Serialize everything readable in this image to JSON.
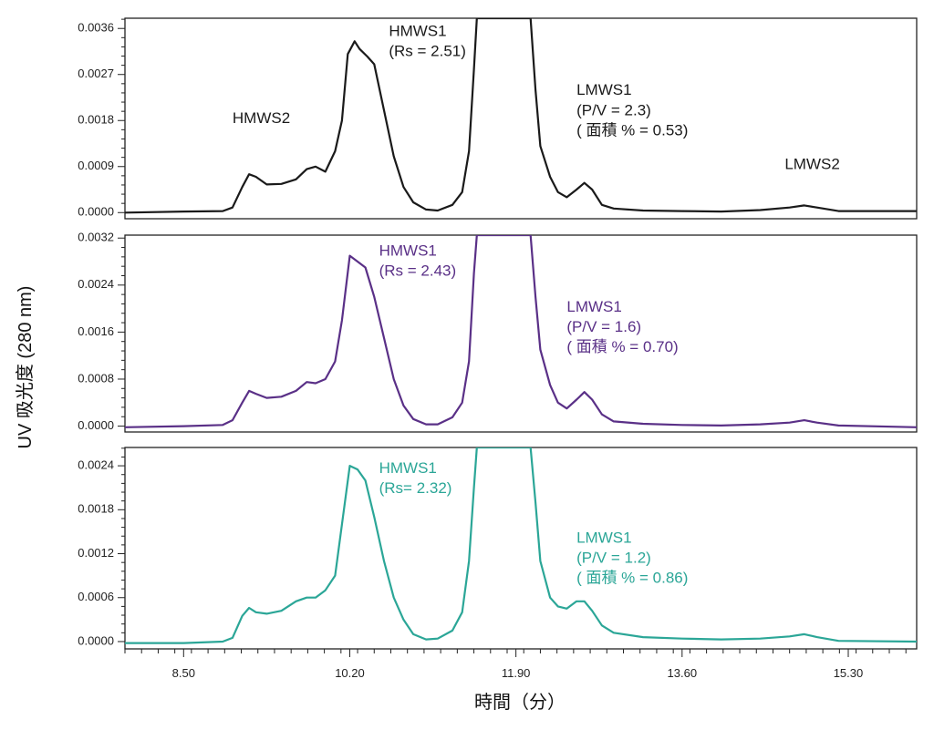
{
  "chart_data": {
    "type": "line",
    "layout": "three vertically stacked panels sharing the x axis",
    "xlabel": "時間（分）",
    "ylabel": "UV 吸光度 (280 nm)",
    "xlim": [
      7.9,
      16.0
    ],
    "xticks": [
      "8.50",
      "10.20",
      "11.90",
      "13.60",
      "15.30"
    ],
    "grid": false,
    "panels": [
      {
        "color": "#1a1a1a",
        "ylim": [
          -0.00012,
          0.0038
        ],
        "yticks": [
          "0.0000",
          "0.0009",
          "0.0018",
          "0.0027",
          "0.0036"
        ],
        "baseline": 0.0,
        "trace": [
          [
            7.9,
            0.0
          ],
          [
            8.5,
            2e-05
          ],
          [
            8.9,
            3e-05
          ],
          [
            9.0,
            0.0001
          ],
          [
            9.1,
            0.0005
          ],
          [
            9.17,
            0.00075
          ],
          [
            9.24,
            0.0007
          ],
          [
            9.35,
            0.00055
          ],
          [
            9.5,
            0.00056
          ],
          [
            9.65,
            0.00065
          ],
          [
            9.76,
            0.00085
          ],
          [
            9.85,
            0.0009
          ],
          [
            9.95,
            0.0008
          ],
          [
            10.05,
            0.0012
          ],
          [
            10.12,
            0.0018
          ],
          [
            10.18,
            0.0031
          ],
          [
            10.25,
            0.00335
          ],
          [
            10.3,
            0.0032
          ],
          [
            10.38,
            0.00305
          ],
          [
            10.45,
            0.0029
          ],
          [
            10.55,
            0.002
          ],
          [
            10.65,
            0.0011
          ],
          [
            10.75,
            0.0005
          ],
          [
            10.85,
            0.0002
          ],
          [
            10.98,
            6e-05
          ],
          [
            11.1,
            4e-05
          ],
          [
            11.25,
            0.00015
          ],
          [
            11.35,
            0.0004
          ],
          [
            11.42,
            0.0012
          ],
          [
            11.47,
            0.0028
          ],
          [
            11.5,
            0.0038
          ],
          [
            12.05,
            0.0038
          ],
          [
            12.1,
            0.0024
          ],
          [
            12.15,
            0.0013
          ],
          [
            12.25,
            0.0007
          ],
          [
            12.33,
            0.0004
          ],
          [
            12.42,
            0.0003
          ],
          [
            12.52,
            0.00045
          ],
          [
            12.6,
            0.00058
          ],
          [
            12.68,
            0.00045
          ],
          [
            12.78,
            0.00015
          ],
          [
            12.9,
            8e-05
          ],
          [
            13.2,
            4e-05
          ],
          [
            13.6,
            3e-05
          ],
          [
            14.0,
            2e-05
          ],
          [
            14.4,
            5e-05
          ],
          [
            14.7,
            0.0001
          ],
          [
            14.85,
            0.00014
          ],
          [
            14.98,
            0.0001
          ],
          [
            15.2,
            3e-05
          ],
          [
            16.0,
            3e-05
          ]
        ],
        "annotations": [
          {
            "lines": [
              "HMWS2"
            ],
            "x": 9.0,
            "y": 0.00175
          },
          {
            "lines": [
              "HMWS1",
              "(Rs = 2.51)"
            ],
            "x": 10.6,
            "y": 0.00345
          },
          {
            "lines": [
              "LMWS1",
              "(P/V = 2.3)",
              "( 面積 % = 0.53)"
            ],
            "x": 12.52,
            "y": 0.0023
          },
          {
            "lines": [
              "LMWS2"
            ],
            "x": 14.65,
            "y": 0.00085
          }
        ]
      },
      {
        "color": "#5a3087",
        "ylim": [
          -0.0001,
          0.00325
        ],
        "yticks": [
          "0.0000",
          "0.0008",
          "0.0016",
          "0.0024",
          "0.0032"
        ],
        "baseline": 0.0,
        "trace": [
          [
            7.9,
            -2e-05
          ],
          [
            8.5,
            0.0
          ],
          [
            8.9,
            2e-05
          ],
          [
            9.0,
            0.0001
          ],
          [
            9.1,
            0.0004
          ],
          [
            9.17,
            0.0006
          ],
          [
            9.24,
            0.00055
          ],
          [
            9.35,
            0.00048
          ],
          [
            9.5,
            0.0005
          ],
          [
            9.65,
            0.0006
          ],
          [
            9.76,
            0.00075
          ],
          [
            9.85,
            0.00073
          ],
          [
            9.95,
            0.0008
          ],
          [
            10.05,
            0.0011
          ],
          [
            10.12,
            0.0018
          ],
          [
            10.2,
            0.0029
          ],
          [
            10.28,
            0.0028
          ],
          [
            10.36,
            0.0027
          ],
          [
            10.45,
            0.0022
          ],
          [
            10.55,
            0.0015
          ],
          [
            10.65,
            0.0008
          ],
          [
            10.75,
            0.00035
          ],
          [
            10.85,
            0.00012
          ],
          [
            10.98,
            3e-05
          ],
          [
            11.1,
            3e-05
          ],
          [
            11.25,
            0.00015
          ],
          [
            11.35,
            0.0004
          ],
          [
            11.42,
            0.0011
          ],
          [
            11.47,
            0.0026
          ],
          [
            11.5,
            0.00325
          ],
          [
            12.05,
            0.00325
          ],
          [
            12.1,
            0.0022
          ],
          [
            12.15,
            0.0013
          ],
          [
            12.25,
            0.0007
          ],
          [
            12.33,
            0.0004
          ],
          [
            12.42,
            0.0003
          ],
          [
            12.52,
            0.00045
          ],
          [
            12.6,
            0.00058
          ],
          [
            12.68,
            0.00045
          ],
          [
            12.78,
            0.0002
          ],
          [
            12.9,
            8e-05
          ],
          [
            13.2,
            4e-05
          ],
          [
            13.6,
            2e-05
          ],
          [
            14.0,
            1e-05
          ],
          [
            14.4,
            3e-05
          ],
          [
            14.7,
            6e-05
          ],
          [
            14.85,
            0.0001
          ],
          [
            14.98,
            6e-05
          ],
          [
            15.2,
            1e-05
          ],
          [
            16.0,
            -2e-05
          ]
        ],
        "annotations": [
          {
            "lines": [
              "HMWS1",
              "(Rs = 2.43)"
            ],
            "x": 10.5,
            "y": 0.0029
          },
          {
            "lines": [
              "LMWS1",
              "(P/V = 1.6)",
              "( 面積 % = 0.70)"
            ],
            "x": 12.42,
            "y": 0.00195
          }
        ]
      },
      {
        "color": "#2ba697",
        "ylim": [
          -0.0001,
          0.00265
        ],
        "yticks": [
          "0.0000",
          "0.0006",
          "0.0012",
          "0.0018",
          "0.0024"
        ],
        "baseline": 0.0,
        "trace": [
          [
            7.9,
            -2e-05
          ],
          [
            8.5,
            -2e-05
          ],
          [
            8.9,
            0.0
          ],
          [
            9.0,
            5e-05
          ],
          [
            9.1,
            0.00035
          ],
          [
            9.17,
            0.00046
          ],
          [
            9.24,
            0.0004
          ],
          [
            9.35,
            0.00038
          ],
          [
            9.5,
            0.00042
          ],
          [
            9.65,
            0.00055
          ],
          [
            9.76,
            0.0006
          ],
          [
            9.85,
            0.0006
          ],
          [
            9.95,
            0.0007
          ],
          [
            10.05,
            0.0009
          ],
          [
            10.12,
            0.0016
          ],
          [
            10.2,
            0.0024
          ],
          [
            10.28,
            0.00235
          ],
          [
            10.36,
            0.0022
          ],
          [
            10.45,
            0.0017
          ],
          [
            10.55,
            0.0011
          ],
          [
            10.65,
            0.0006
          ],
          [
            10.75,
            0.0003
          ],
          [
            10.85,
            0.0001
          ],
          [
            10.98,
            3e-05
          ],
          [
            11.1,
            4e-05
          ],
          [
            11.25,
            0.00015
          ],
          [
            11.35,
            0.0004
          ],
          [
            11.42,
            0.0011
          ],
          [
            11.47,
            0.0021
          ],
          [
            11.5,
            0.00265
          ],
          [
            12.05,
            0.00265
          ],
          [
            12.1,
            0.0019
          ],
          [
            12.15,
            0.0011
          ],
          [
            12.25,
            0.0006
          ],
          [
            12.33,
            0.00048
          ],
          [
            12.42,
            0.00045
          ],
          [
            12.52,
            0.00055
          ],
          [
            12.6,
            0.00055
          ],
          [
            12.68,
            0.00042
          ],
          [
            12.78,
            0.00022
          ],
          [
            12.9,
            0.00012
          ],
          [
            13.2,
            6e-05
          ],
          [
            13.6,
            4e-05
          ],
          [
            14.0,
            3e-05
          ],
          [
            14.4,
            4e-05
          ],
          [
            14.7,
            7e-05
          ],
          [
            14.85,
            0.0001
          ],
          [
            14.98,
            6e-05
          ],
          [
            15.2,
            1e-05
          ],
          [
            16.0,
            0.0
          ]
        ],
        "annotations": [
          {
            "lines": [
              "HMWS1",
              "(Rs= 2.32)"
            ],
            "x": 10.5,
            "y": 0.0023
          },
          {
            "lines": [
              "LMWS1",
              "(P/V = 1.2)",
              "( 面積 % = 0.86)"
            ],
            "x": 12.52,
            "y": 0.00135
          }
        ]
      }
    ]
  }
}
